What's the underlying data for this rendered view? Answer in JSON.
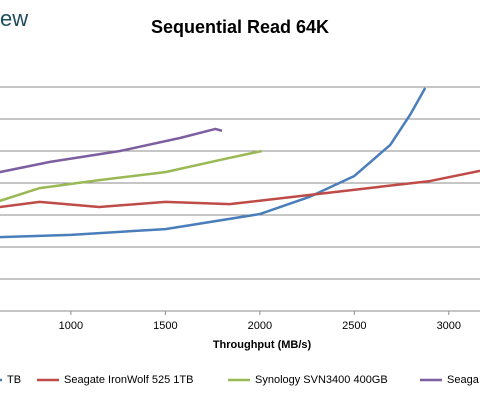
{
  "logo": "ew",
  "chart_data": {
    "type": "line",
    "title": "Sequential Read 64K",
    "x_label": "Throughput (MB/s)",
    "xlim": [
      625,
      3165
    ],
    "xticks": [
      1000,
      1500,
      2000,
      2500,
      3000
    ],
    "ylim": [
      0,
      8
    ],
    "ygrid": [
      1,
      2,
      3,
      4,
      5,
      6,
      7
    ],
    "series": [
      {
        "name": "TB",
        "color": "#4a7ebb",
        "x": [
          624,
          1000,
          1500,
          2000,
          2260,
          2500,
          2690,
          2795,
          2875
        ],
        "values": [
          2.31,
          2.38,
          2.56,
          3.03,
          3.56,
          4.22,
          5.19,
          6.13,
          6.97
        ]
      },
      {
        "name": "Seagate IronWolf 525 1TB",
        "color": "#be4b48",
        "x": [
          624,
          835,
          1150,
          1500,
          1840,
          2210,
          2530,
          2900,
          3165
        ],
        "values": [
          3.25,
          3.41,
          3.25,
          3.41,
          3.34,
          3.59,
          3.81,
          4.06,
          4.38
        ]
      },
      {
        "name": "Synology SVN3400 400GB",
        "color": "#98b954",
        "x": [
          624,
          835,
          1150,
          1500,
          1790,
          2010
        ],
        "values": [
          3.44,
          3.84,
          4.09,
          4.34,
          4.72,
          5.0
        ]
      },
      {
        "name": "Seaga",
        "color": "#7d5fa0",
        "x": [
          624,
          890,
          1260,
          1580,
          1765,
          1800
        ],
        "values": [
          4.34,
          4.66,
          5.0,
          5.41,
          5.69,
          5.63
        ]
      }
    ]
  }
}
